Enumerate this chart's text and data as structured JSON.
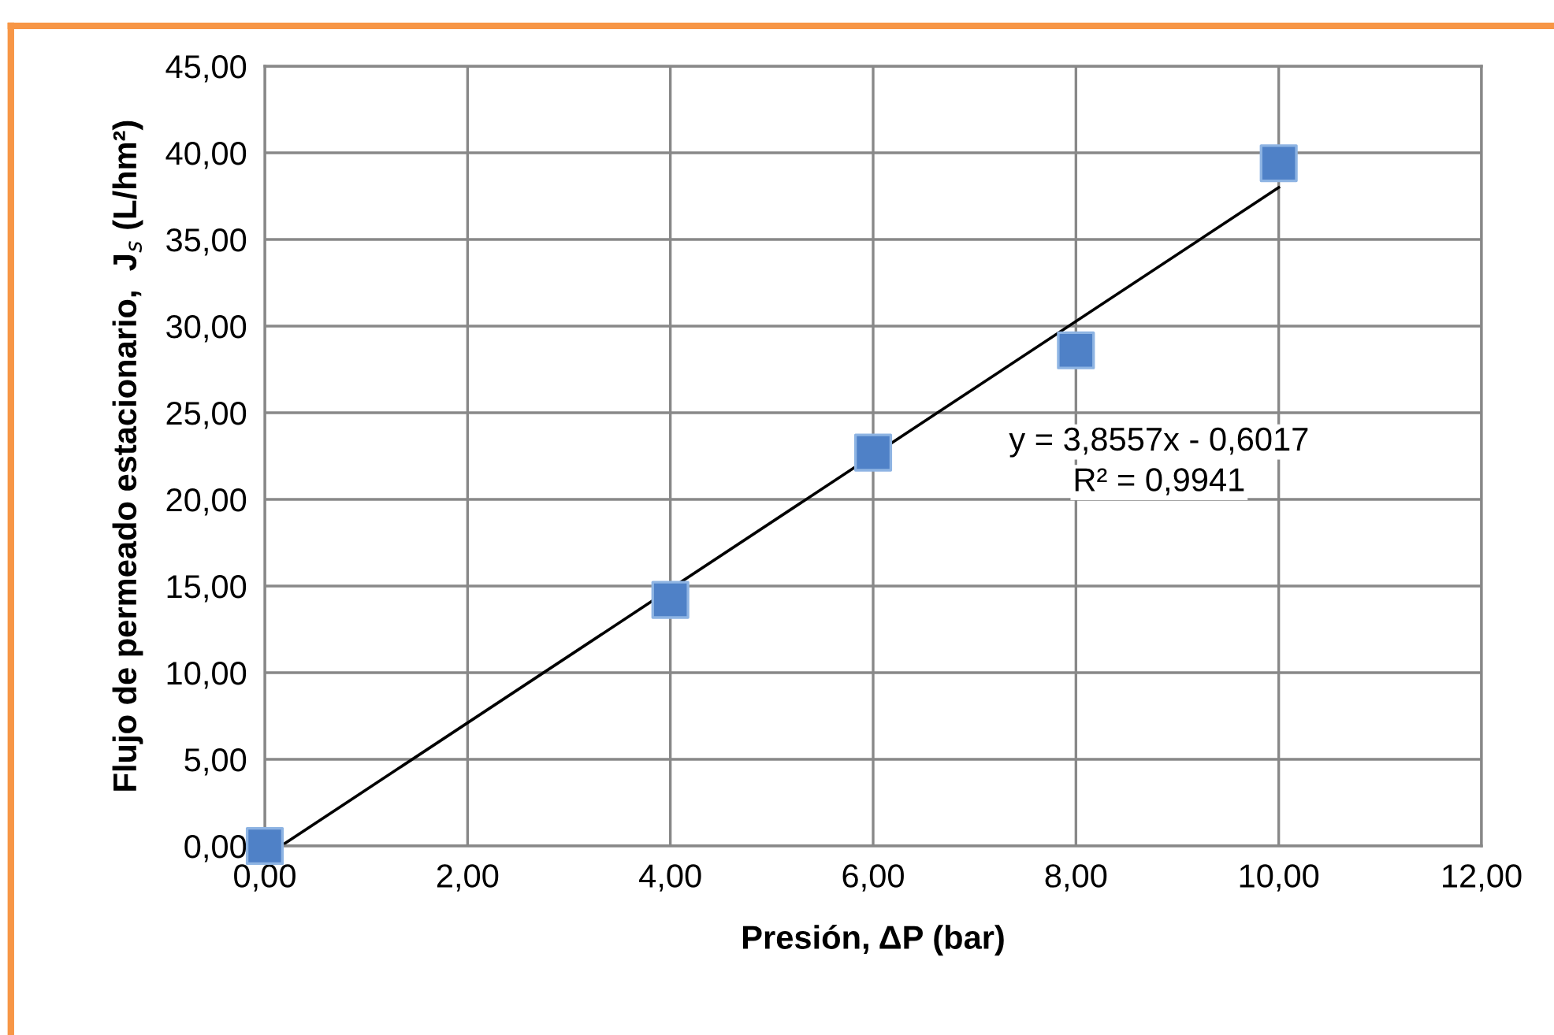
{
  "chart_data": {
    "type": "scatter",
    "xlabel": "Presión, ΔP (bar)",
    "ylabel": "Flujo de permeado estacionario,  J$_{s}$ (L/hm²)",
    "x": [
      0,
      4,
      6,
      8,
      10
    ],
    "series": [
      {
        "color": "#4f81c7",
        "marker": "square",
        "values": [
          0,
          14.2,
          22.7,
          28.6,
          39.4
        ]
      },
      {
        "type": "line",
        "color": "#000000",
        "marker": "none",
        "line_style": "solid",
        "x": [
          0.16,
          10
        ],
        "values": [
          0,
          38.0
        ]
      }
    ],
    "xlim": [
      0,
      12
    ],
    "ylim": [
      0,
      45
    ],
    "xticks": [
      {
        "value": 0,
        "label": "0,00"
      },
      {
        "value": 2,
        "label": "2,00"
      },
      {
        "value": 4,
        "label": "4,00"
      },
      {
        "value": 6,
        "label": "6,00"
      },
      {
        "value": 8,
        "label": "8,00"
      },
      {
        "value": 10,
        "label": "10,00"
      },
      {
        "value": 12,
        "label": "12,00"
      }
    ],
    "yticks": [
      {
        "value": 0,
        "label": "0,00"
      },
      {
        "value": 5,
        "label": "5,00"
      },
      {
        "value": 10,
        "label": "10,00"
      },
      {
        "value": 15,
        "label": "15,00"
      },
      {
        "value": 20,
        "label": "20,00"
      },
      {
        "value": 25,
        "label": "25,00"
      },
      {
        "value": 30,
        "label": "30,00"
      },
      {
        "value": 35,
        "label": "35,00"
      },
      {
        "value": 40,
        "label": "40,00"
      },
      {
        "value": 45,
        "label": "45,00"
      }
    ],
    "grid": true,
    "annotations": [
      "y = 3,8557x - 0,6017",
      "R² = 0,9941"
    ]
  }
}
